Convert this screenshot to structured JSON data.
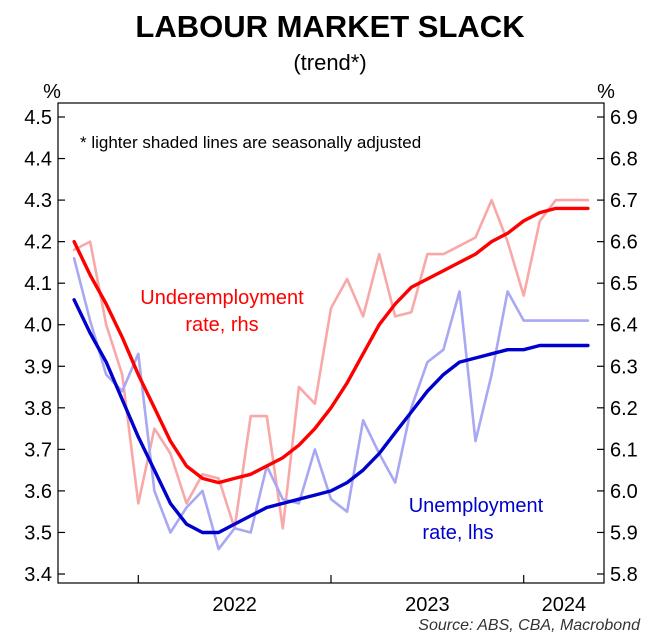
{
  "chart_data": {
    "type": "line",
    "title": "LABOUR MARKET SLACK",
    "subtitle": "(trend*)",
    "note": "*  lighter shaded lines are seasonally adjusted",
    "source": "Source: ABS, CBA, Macrobond",
    "left_axis": {
      "unit": "%",
      "ylim": [
        3.4,
        4.5
      ],
      "ticks": [
        "3.4",
        "3.5",
        "3.6",
        "3.7",
        "3.8",
        "3.9",
        "4.0",
        "4.1",
        "4.2",
        "4.3",
        "4.4",
        "4.5"
      ]
    },
    "right_axis": {
      "unit": "%",
      "ylim": [
        5.8,
        6.9
      ],
      "ticks": [
        "5.8",
        "5.9",
        "6.0",
        "6.1",
        "6.2",
        "6.3",
        "6.4",
        "6.5",
        "6.6",
        "6.7",
        "6.8",
        "6.9"
      ]
    },
    "x_axis": {
      "year_labels": [
        "2022",
        "2023",
        "2024"
      ],
      "start_month": "2021-08",
      "end_month": "2024-06"
    },
    "series": [
      {
        "name": "Underemployment rate, rhs",
        "label_lines": [
          "Underemployment",
          "rate, rhs"
        ],
        "axis": "right",
        "color": "#ff0000",
        "sa_color": "#f9a8a8",
        "x": [
          "2021-09",
          "2021-10",
          "2021-11",
          "2021-12",
          "2022-01",
          "2022-02",
          "2022-03",
          "2022-04",
          "2022-05",
          "2022-06",
          "2022-07",
          "2022-08",
          "2022-09",
          "2022-10",
          "2022-11",
          "2022-12",
          "2023-01",
          "2023-02",
          "2023-03",
          "2023-04",
          "2023-05",
          "2023-06",
          "2023-07",
          "2023-08",
          "2023-09",
          "2023-10",
          "2023-11",
          "2023-12",
          "2024-01",
          "2024-02",
          "2024-03",
          "2024-04",
          "2024-05"
        ],
        "trend": [
          6.6,
          6.52,
          6.45,
          6.37,
          6.28,
          6.2,
          6.12,
          6.06,
          6.03,
          6.02,
          6.03,
          6.04,
          6.06,
          6.08,
          6.11,
          6.15,
          6.2,
          6.26,
          6.33,
          6.4,
          6.45,
          6.49,
          6.51,
          6.53,
          6.55,
          6.57,
          6.6,
          6.62,
          6.65,
          6.67,
          6.68,
          6.68,
          6.68
        ],
        "seasonally_adjusted": [
          6.58,
          6.6,
          6.4,
          6.28,
          5.97,
          6.15,
          6.09,
          5.97,
          6.04,
          6.03,
          5.91,
          6.18,
          6.18,
          5.91,
          6.25,
          6.21,
          6.44,
          6.51,
          6.42,
          6.57,
          6.42,
          6.43,
          6.57,
          6.57,
          6.59,
          6.61,
          6.7,
          6.6,
          6.47,
          6.65,
          6.7,
          6.7,
          6.7
        ]
      },
      {
        "name": "Unemployment rate, lhs",
        "label_lines": [
          "Unemployment",
          "rate, lhs"
        ],
        "axis": "left",
        "color": "#0000cc",
        "sa_color": "#a8a8f3",
        "x": [
          "2021-09",
          "2021-10",
          "2021-11",
          "2021-12",
          "2022-01",
          "2022-02",
          "2022-03",
          "2022-04",
          "2022-05",
          "2022-06",
          "2022-07",
          "2022-08",
          "2022-09",
          "2022-10",
          "2022-11",
          "2022-12",
          "2023-01",
          "2023-02",
          "2023-03",
          "2023-04",
          "2023-05",
          "2023-06",
          "2023-07",
          "2023-08",
          "2023-09",
          "2023-10",
          "2023-11",
          "2023-12",
          "2024-01",
          "2024-02",
          "2024-03",
          "2024-04",
          "2024-05"
        ],
        "trend": [
          4.06,
          3.98,
          3.91,
          3.82,
          3.73,
          3.65,
          3.57,
          3.52,
          3.5,
          3.5,
          3.52,
          3.54,
          3.56,
          3.57,
          3.58,
          3.59,
          3.6,
          3.62,
          3.65,
          3.69,
          3.74,
          3.79,
          3.84,
          3.88,
          3.91,
          3.92,
          3.93,
          3.94,
          3.94,
          3.95,
          3.95,
          3.95,
          3.95
        ],
        "seasonally_adjusted": [
          4.16,
          4.01,
          3.88,
          3.84,
          3.93,
          3.6,
          3.5,
          3.56,
          3.6,
          3.46,
          3.51,
          3.5,
          3.66,
          3.58,
          3.57,
          3.7,
          3.58,
          3.55,
          3.77,
          3.69,
          3.62,
          3.8,
          3.91,
          3.94,
          4.08,
          3.72,
          3.88,
          4.08,
          4.01,
          4.01,
          4.01,
          4.01,
          4.01
        ]
      }
    ]
  }
}
